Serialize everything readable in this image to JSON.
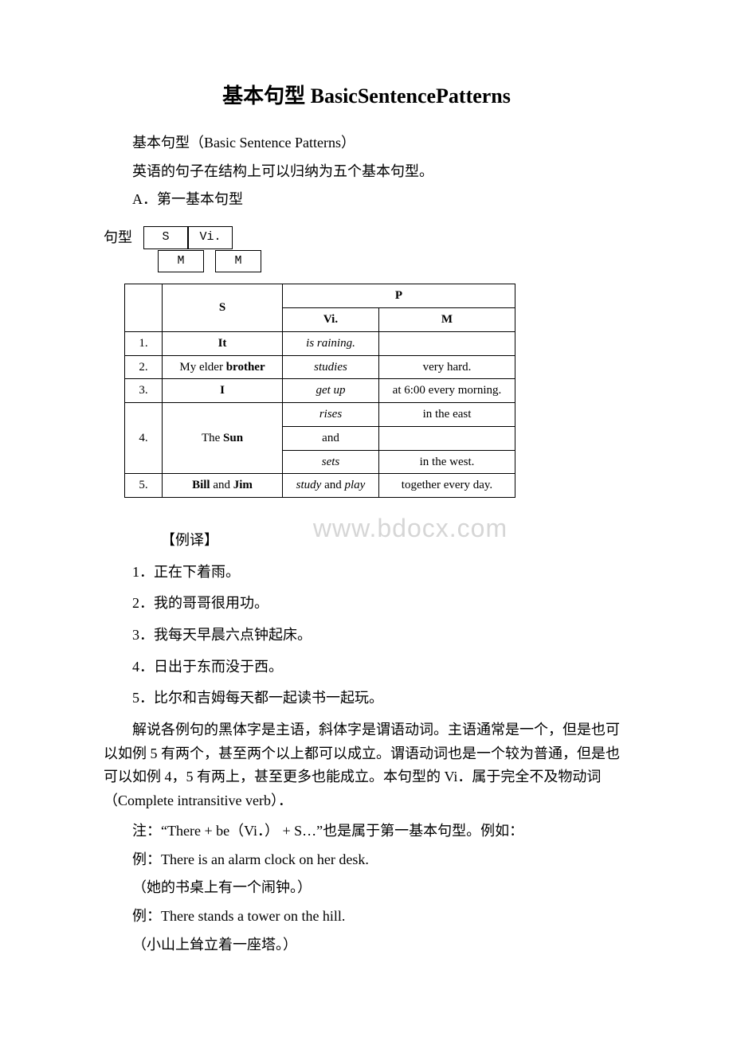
{
  "title": "基本句型 BasicSentencePatterns",
  "intro1": "基本句型（Basic Sentence Patterns）",
  "intro2": "英语的句子在结构上可以归纳为五个基本句型。",
  "sectionA": "A．第一基本句型",
  "diagram": {
    "label": "句型",
    "s": "S",
    "vi": "Vi.",
    "m": "M"
  },
  "table": {
    "head": {
      "s": "S",
      "p": "P",
      "vi": "Vi.",
      "m": "M"
    },
    "rows": [
      {
        "n": "1.",
        "s_plain": "",
        "s_bold": "It",
        "vi": "is raining.",
        "m": ""
      },
      {
        "n": "2.",
        "s_plain": "My elder ",
        "s_bold": "brother",
        "vi": "studies",
        "m": "very hard."
      },
      {
        "n": "3.",
        "s_plain": "",
        "s_bold": "I",
        "vi": "get up",
        "m": "at 6:00 every morning."
      },
      {
        "n": "4.",
        "s_plain": "The ",
        "s_bold": "Sun",
        "vi1": "rises",
        "m1": "in the east",
        "vi2": "and",
        "m2": "",
        "vi3": "sets",
        "m3": "in the west."
      },
      {
        "n": "5.",
        "s_bold1": "Bill",
        "s_mid": " and ",
        "s_bold2": "Jim",
        "vi_a": "study",
        "vi_mid": " and ",
        "vi_b": "play",
        "m": "together every day."
      }
    ]
  },
  "watermark": "www.bdocx.com",
  "exLabel": "【例译】",
  "translations": [
    "1．正在下着雨。",
    "2．我的哥哥很用功。",
    "3．我每天早晨六点钟起床。",
    "4．日出于东而没于西。",
    "5．比尔和吉姆每天都一起读书一起玩。"
  ],
  "explain": "解说各例句的黑体字是主语，斜体字是谓语动词。主语通常是一个，但是也可以如例 5 有两个，甚至两个以上都可以成立。谓语动词也是一个较为普通，但是也可以如例 4，5 有两上，甚至更多也能成立。本句型的 Vi．属于完全不及物动词（Complete intransitive verb）．",
  "note": "注：“There + be（Vi．） + S…”也是属于第一基本句型。例如：",
  "ex1": "例：There is an alarm clock on her desk.",
  "ex1t": "（她的书桌上有一个闹钟。）",
  "ex2": "例：There stands a tower on the hill.",
  "ex2t": "（小山上耸立着一座塔。）"
}
